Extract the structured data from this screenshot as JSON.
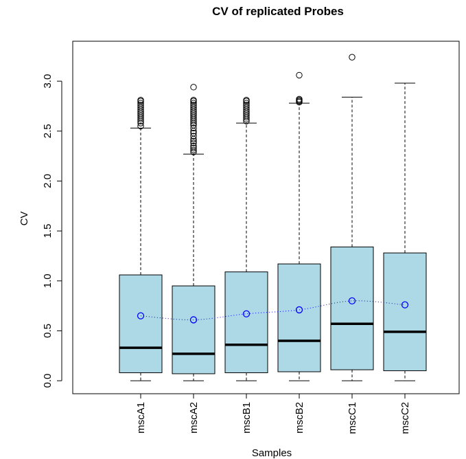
{
  "chart_data": {
    "type": "boxplot",
    "title": "CV of replicated Probes",
    "xlabel": "Samples",
    "ylabel": "CV",
    "ylim": [
      -0.13,
      3.4
    ],
    "yticks": [
      0.0,
      0.5,
      1.0,
      1.5,
      2.0,
      2.5,
      3.0
    ],
    "ytick_labels": [
      "0.0",
      "0.5",
      "1.0",
      "1.5",
      "2.0",
      "2.5",
      "3.0"
    ],
    "categories": [
      "mscA1",
      "mscA2",
      "mscB1",
      "mscB2",
      "mscC1",
      "mscC2"
    ],
    "boxes": [
      {
        "whisker_low": 0.0,
        "q1": 0.08,
        "median": 0.33,
        "q3": 1.06,
        "whisker_high": 2.53,
        "outliers": [
          2.55,
          2.58,
          2.6,
          2.62,
          2.64,
          2.66,
          2.68,
          2.7,
          2.72,
          2.74,
          2.76,
          2.78,
          2.8,
          2.81
        ]
      },
      {
        "whisker_low": 0.0,
        "q1": 0.07,
        "median": 0.27,
        "q3": 0.95,
        "whisker_high": 2.27,
        "outliers": [
          2.29,
          2.31,
          2.33,
          2.35,
          2.38,
          2.4,
          2.42,
          2.45,
          2.48,
          2.5,
          2.53,
          2.56,
          2.58,
          2.6,
          2.62,
          2.64,
          2.66,
          2.68,
          2.7,
          2.72,
          2.74,
          2.76,
          2.78,
          2.8,
          2.81,
          2.94
        ]
      },
      {
        "whisker_low": 0.0,
        "q1": 0.08,
        "median": 0.36,
        "q3": 1.09,
        "whisker_high": 2.58,
        "outliers": [
          2.6,
          2.62,
          2.64,
          2.66,
          2.68,
          2.7,
          2.72,
          2.74,
          2.76,
          2.78,
          2.8,
          2.81
        ]
      },
      {
        "whisker_low": 0.0,
        "q1": 0.09,
        "median": 0.4,
        "q3": 1.17,
        "whisker_high": 2.78,
        "outliers": [
          2.79,
          2.8,
          2.81,
          2.82,
          3.06
        ]
      },
      {
        "whisker_low": 0.0,
        "q1": 0.11,
        "median": 0.57,
        "q3": 1.34,
        "whisker_high": 2.84,
        "outliers": [
          3.24
        ]
      },
      {
        "whisker_low": 0.0,
        "q1": 0.1,
        "median": 0.49,
        "q3": 1.28,
        "whisker_high": 2.98,
        "outliers": []
      }
    ],
    "mean_line": {
      "values": [
        0.65,
        0.61,
        0.67,
        0.71,
        0.8,
        0.76
      ],
      "color": "#0000ff"
    },
    "box_fill": "#add8e6",
    "grid": false,
    "legend": "none"
  }
}
